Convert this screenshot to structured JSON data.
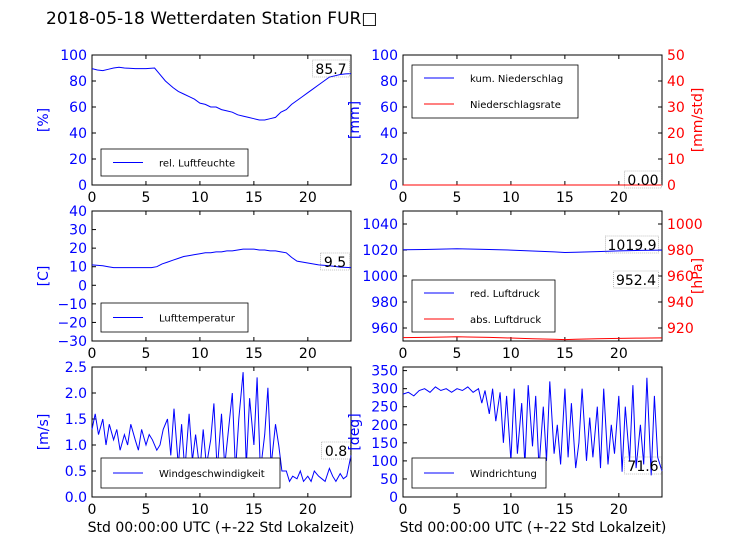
{
  "title": "2018-05-18 Wetterdaten Station FUR□",
  "xlabel": "Std 00:00:00 UTC (+-22 Std Lokalzeit)",
  "colors": {
    "blue": "#0000ff",
    "red": "#ff0000",
    "black": "#000000"
  },
  "chart_data": [
    {
      "id": "humidity",
      "type": "line",
      "ylabel": "[%]",
      "xlim": [
        0,
        24
      ],
      "ylim": [
        0,
        100
      ],
      "xticks": [
        "0",
        "5",
        "10",
        "15",
        "20"
      ],
      "yticks": [
        "0",
        "20",
        "40",
        "60",
        "80",
        "100"
      ],
      "legend": [
        "rel. Luftfeuchte"
      ],
      "legend_position": "lower-left",
      "annotation": "85.7",
      "series": [
        {
          "name": "rel. Luftfeuchte",
          "color": "#0000ff",
          "x": [
            0,
            0.5,
            1,
            1.5,
            2,
            2.5,
            3,
            4,
            5,
            5.8,
            6.2,
            6.8,
            7.5,
            8,
            8.5,
            9,
            9.5,
            10,
            10.5,
            11,
            11.5,
            12,
            12.5,
            13,
            13.5,
            14,
            14.5,
            15,
            15.5,
            16,
            16.5,
            17,
            17.5,
            18,
            18.5,
            19,
            19.5,
            20,
            20.5,
            21,
            21.5,
            22,
            22.5,
            23,
            23.5,
            24
          ],
          "y": [
            89.5,
            88.5,
            88,
            89,
            90,
            90.5,
            90,
            89.5,
            89.5,
            90,
            86,
            80,
            75,
            72,
            70,
            68,
            66,
            63,
            62,
            60,
            60,
            58,
            57,
            56,
            54,
            53,
            52,
            51,
            50,
            50,
            51,
            52,
            56,
            58,
            62,
            65,
            68,
            71,
            74,
            77,
            80,
            83,
            84,
            85,
            85.5,
            85.7
          ]
        }
      ]
    },
    {
      "id": "precip",
      "type": "line",
      "ylabel": "[mm]",
      "ylabel_right": "[mm/std]",
      "xlim": [
        0,
        24
      ],
      "ylim": [
        0,
        100
      ],
      "ylim_right": [
        0,
        50
      ],
      "xticks": [
        "0",
        "5",
        "10",
        "15",
        "20"
      ],
      "yticks": [
        "0",
        "20",
        "40",
        "60",
        "80",
        "100"
      ],
      "yticks_right": [
        "0",
        "10",
        "20",
        "30",
        "40",
        "50"
      ],
      "legend": [
        "kum. Niederschlag",
        "Niederschlagsrate"
      ],
      "legend_position": "upper-left",
      "annotation": "0.00",
      "series": [
        {
          "name": "kum. Niederschlag",
          "color": "#0000ff",
          "x": [
            0,
            24
          ],
          "y": [
            0,
            0
          ]
        },
        {
          "name": "Niederschlagsrate",
          "color": "#ff0000",
          "x": [
            0,
            24
          ],
          "y": [
            0,
            0
          ]
        }
      ]
    },
    {
      "id": "temperature",
      "type": "line",
      "ylabel": "[C]",
      "xlim": [
        0,
        24
      ],
      "ylim": [
        -30,
        40
      ],
      "xticks": [
        "0",
        "5",
        "10",
        "15",
        "20"
      ],
      "yticks": [
        "−30",
        "−20",
        "−10",
        "0",
        "10",
        "20",
        "30",
        "40"
      ],
      "legend": [
        "Lufttemperatur"
      ],
      "legend_position": "lower-left",
      "annotation": "9.5",
      "series": [
        {
          "name": "Lufttemperatur",
          "color": "#0000ff",
          "x": [
            0,
            1,
            1.5,
            2,
            3,
            4,
            5,
            5.5,
            6,
            6.5,
            7,
            7.5,
            8,
            8.5,
            9,
            9.5,
            10,
            10.5,
            11,
            11.5,
            12,
            12.5,
            13,
            13.5,
            14,
            14.5,
            15,
            15.5,
            16,
            16.5,
            17,
            17.5,
            18,
            18.5,
            19,
            20,
            21,
            22,
            23,
            24
          ],
          "y": [
            11,
            10.5,
            10,
            9.5,
            9.5,
            9.5,
            9.5,
            9.5,
            10,
            11.5,
            12.5,
            13.5,
            14.5,
            15.5,
            16,
            16.5,
            17,
            17.5,
            17.5,
            18,
            18,
            18.5,
            18.5,
            19,
            19.5,
            19.5,
            19.5,
            19,
            19,
            18.5,
            18.5,
            18,
            17.5,
            15,
            13,
            12,
            11,
            10.5,
            9.8,
            9.5
          ]
        }
      ]
    },
    {
      "id": "pressure",
      "type": "line",
      "ylabel_right": "[hPa]",
      "xlim": [
        0,
        24
      ],
      "ylim": [
        950,
        1050
      ],
      "ylim_right": [
        910,
        1010
      ],
      "xticks": [
        "0",
        "5",
        "10",
        "15",
        "20"
      ],
      "yticks": [
        "960",
        "980",
        "1000",
        "1020",
        "1040"
      ],
      "yticks_right": [
        "920",
        "940",
        "960",
        "980",
        "1000"
      ],
      "legend": [
        "red. Luftdruck",
        "abs. Luftdruck"
      ],
      "legend_position": "lower-left",
      "annotations": [
        "1019.9",
        "952.4"
      ],
      "series": [
        {
          "name": "red. Luftdruck",
          "color": "#0000ff",
          "x": [
            0,
            2,
            4,
            5,
            6,
            8,
            10,
            12,
            14,
            15,
            16,
            18,
            20,
            22,
            24
          ],
          "y": [
            1020.2,
            1020.4,
            1020.8,
            1021,
            1020.8,
            1020.4,
            1019.9,
            1019.2,
            1018.5,
            1018.1,
            1018.3,
            1018.8,
            1019.3,
            1019.7,
            1019.9
          ]
        },
        {
          "name": "abs. Luftdruck",
          "color": "#ff0000",
          "x": [
            0,
            2,
            4,
            5,
            6,
            8,
            10,
            12,
            14,
            15,
            16,
            18,
            20,
            22,
            24
          ],
          "y": [
            952.6,
            952.8,
            953.1,
            953.3,
            953.1,
            952.8,
            952.3,
            951.8,
            951.4,
            951.1,
            951.3,
            951.7,
            952,
            952.2,
            952.4
          ]
        }
      ]
    },
    {
      "id": "windspeed",
      "type": "line",
      "ylabel": "[m/s]",
      "xlim": [
        0,
        24
      ],
      "ylim": [
        0,
        2.5
      ],
      "xticks": [
        "0",
        "5",
        "10",
        "15",
        "20"
      ],
      "yticks": [
        "0.0",
        "0.5",
        "1.0",
        "1.5",
        "2.0",
        "2.5"
      ],
      "legend": [
        "Windgeschwindigkeit"
      ],
      "legend_position": "lower-left",
      "annotation": "0.8",
      "series": [
        {
          "name": "Windgeschwindigkeit",
          "color": "#0000ff",
          "x": [
            0,
            0.3,
            0.6,
            1,
            1.3,
            1.6,
            2,
            2.3,
            2.6,
            3,
            3.3,
            3.6,
            4,
            4.3,
            4.6,
            5,
            5.3,
            5.6,
            6,
            6.3,
            6.6,
            7,
            7.3,
            7.6,
            8,
            8.3,
            8.6,
            9,
            9.3,
            9.6,
            10,
            10.3,
            10.6,
            11,
            11.3,
            11.6,
            12,
            12.3,
            12.6,
            13,
            13.3,
            13.6,
            14,
            14.3,
            14.6,
            15,
            15.3,
            15.6,
            16,
            16.3,
            16.6,
            17,
            17.3,
            17.6,
            18,
            18.3,
            18.6,
            19,
            19.3,
            19.6,
            20,
            20.3,
            20.6,
            21,
            21.3,
            21.6,
            22,
            22.3,
            22.6,
            23,
            23.3,
            23.6,
            24
          ],
          "y": [
            1.3,
            1.6,
            1.2,
            1.5,
            1.0,
            1.4,
            1.1,
            1.3,
            0.9,
            1.2,
            1.0,
            1.4,
            1.1,
            0.9,
            1.3,
            1.0,
            1.2,
            1.1,
            0.9,
            1.0,
            1.3,
            1.5,
            0.8,
            1.7,
            0.6,
            1.4,
            0.5,
            1.6,
            0.7,
            1.2,
            0.5,
            1.3,
            0.6,
            1.1,
            1.8,
            0.5,
            1.6,
            0.6,
            1.2,
            2.0,
            0.5,
            1.5,
            2.4,
            0.6,
            1.9,
            1.0,
            2.3,
            0.5,
            1.2,
            2.1,
            0.6,
            1.4,
            1.0,
            0.5,
            0.5,
            0.3,
            0.4,
            0.35,
            0.5,
            0.3,
            0.4,
            0.3,
            0.5,
            0.4,
            0.35,
            0.3,
            0.55,
            0.4,
            0.3,
            0.45,
            0.35,
            0.4,
            0.8
          ]
        }
      ]
    },
    {
      "id": "winddir",
      "type": "line",
      "ylabel": "[deg]",
      "xlim": [
        0,
        24
      ],
      "ylim": [
        0,
        360
      ],
      "xticks": [
        "0",
        "5",
        "10",
        "15",
        "20"
      ],
      "yticks": [
        "0",
        "50",
        "100",
        "150",
        "200",
        "250",
        "300",
        "350"
      ],
      "legend": [
        "Windrichtung"
      ],
      "legend_position": "lower-left",
      "annotation": "71.6",
      "series": [
        {
          "name": "Windrichtung",
          "color": "#0000ff",
          "x": [
            0,
            0.5,
            1,
            1.5,
            2,
            2.5,
            3,
            3.5,
            4,
            4.5,
            5,
            5.5,
            6,
            6.5,
            7,
            7.3,
            7.6,
            8,
            8.3,
            8.6,
            9,
            9.3,
            9.6,
            10,
            10.3,
            10.6,
            11,
            11.3,
            11.6,
            12,
            12.3,
            12.6,
            13,
            13.3,
            13.6,
            14,
            14.3,
            14.6,
            15,
            15.3,
            15.6,
            16,
            16.3,
            16.6,
            17,
            17.3,
            17.6,
            18,
            18.3,
            18.6,
            19,
            19.3,
            19.6,
            20,
            20.3,
            20.6,
            21,
            21.3,
            21.6,
            22,
            22.3,
            22.6,
            23,
            23.3,
            23.6,
            24
          ],
          "y": [
            285,
            290,
            280,
            295,
            300,
            290,
            305,
            295,
            300,
            290,
            300,
            295,
            305,
            290,
            300,
            260,
            295,
            230,
            300,
            210,
            290,
            150,
            280,
            100,
            300,
            120,
            260,
            90,
            310,
            140,
            280,
            80,
            250,
            100,
            320,
            120,
            200,
            90,
            300,
            110,
            260,
            80,
            150,
            300,
            100,
            220,
            110,
            250,
            80,
            300,
            90,
            200,
            120,
            280,
            70,
            250,
            100,
            310,
            80,
            200,
            90,
            330,
            60,
            280,
            110,
            71.6
          ]
        }
      ]
    }
  ]
}
